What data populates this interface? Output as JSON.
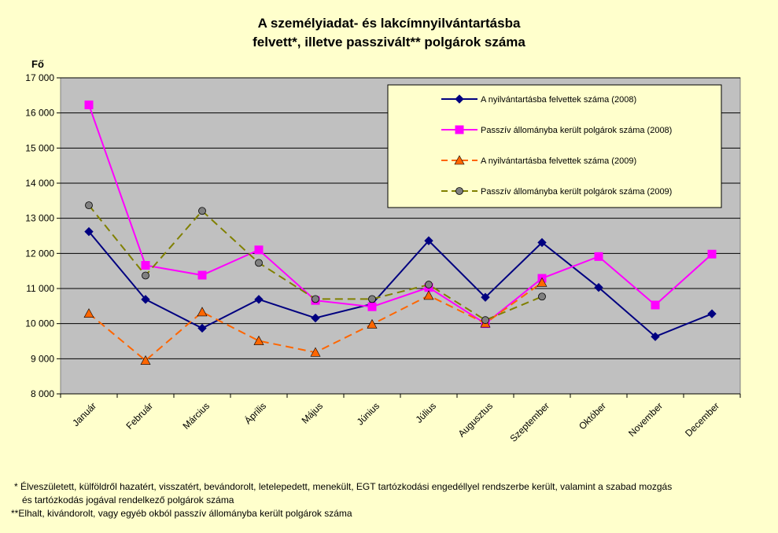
{
  "chart_data": {
    "type": "line",
    "title_line1": "A személyiadat- és lakcímnyilvántartásba",
    "title_line2": "felvett*, illetve passzivált** polgárok száma",
    "ylabel": "Fő",
    "ylim": [
      8000,
      17000
    ],
    "y_ticks": [
      "8 000",
      "9 000",
      "10 000",
      "11 000",
      "12 000",
      "13 000",
      "14 000",
      "15 000",
      "16 000",
      "17 000"
    ],
    "y_tick_values": [
      8000,
      9000,
      10000,
      11000,
      12000,
      13000,
      14000,
      15000,
      16000,
      17000
    ],
    "categories": [
      "Január",
      "Február",
      "Március",
      "Április",
      "Május",
      "Június",
      "Július",
      "Augusztus",
      "Szeptember",
      "Október",
      "November",
      "December"
    ],
    "grid": true,
    "legend_position": "top-right",
    "colors": {
      "plot_bg": "#C0C0C0",
      "page_bg": "#FFFFCC"
    },
    "series": [
      {
        "name": "A nyilvántartásba felvettek száma (2008)",
        "color": "#000080",
        "marker": "diamond",
        "dashed": false,
        "values": [
          12620,
          10690,
          9870,
          10690,
          10160,
          10560,
          12360,
          10750,
          12310,
          11030,
          9630,
          10280
        ]
      },
      {
        "name": "Passzív állományba került polgárok száma (2008)",
        "color": "#FF00FF",
        "marker": "square",
        "dashed": false,
        "values": [
          16230,
          11660,
          11380,
          12100,
          10660,
          10480,
          11030,
          10000,
          11290,
          11910,
          10530,
          11980
        ]
      },
      {
        "name": "A nyilvántartásba felvettek száma (2009)",
        "color": "#FF6600",
        "marker": "triangle",
        "dashed": true,
        "values": [
          10290,
          8950,
          10330,
          9510,
          9180,
          9980,
          10800,
          10010,
          11170,
          null,
          null,
          null
        ]
      },
      {
        "name": "Passzív állományba került polgárok száma (2009)",
        "color": "#808000",
        "marker": "circle",
        "dashed": true,
        "values": [
          13370,
          11370,
          13210,
          11730,
          10700,
          10700,
          11110,
          10100,
          10770,
          null,
          null,
          null
        ]
      }
    ]
  },
  "footnotes": {
    "line1": "* Élveszületett, külföldről hazatért, visszatért, bevándorolt, letelepedett, menekült, EGT tartózkodási engedéllyel rendszerbe került, valamint a szabad mozgás",
    "line2": "és tartózkodás jogával rendelkező  polgárok száma",
    "line3": "**Elhalt, kivándorolt, vagy egyéb okból passzív állományba került polgárok száma"
  }
}
